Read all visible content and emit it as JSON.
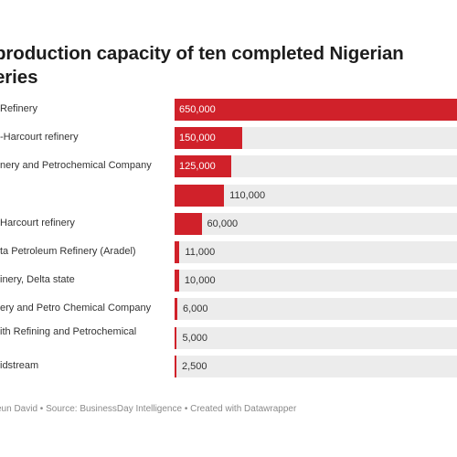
{
  "chart_data": {
    "type": "bar",
    "title": "production capacity of ten completed Nigerian\neries",
    "categories": [
      "Refinery",
      "-Harcourt refinery",
      "nery and Petrochemical Company",
      "",
      "Harcourt refinery",
      "ta Petroleum Refinery (Aradel)",
      "inery, Delta state",
      "ery and Petro Chemical Company",
      "ith Refining and Petrochemical\n",
      "idstream"
    ],
    "values": [
      650000,
      150000,
      125000,
      110000,
      60000,
      11000,
      10000,
      6000,
      5000,
      2500
    ],
    "value_labels": [
      "650,000",
      "150,000",
      "125,000",
      "110,000",
      "60,000",
      "11,000",
      "10,000",
      "6,000",
      "5,000",
      "2,500"
    ],
    "xlim": [
      0,
      650000
    ],
    "bar_color": "#d0212a",
    "track_color": "#ececec",
    "grid": false,
    "footer": "eun David • Source: BusinessDay Intelligence • Created with Datawrapper"
  }
}
